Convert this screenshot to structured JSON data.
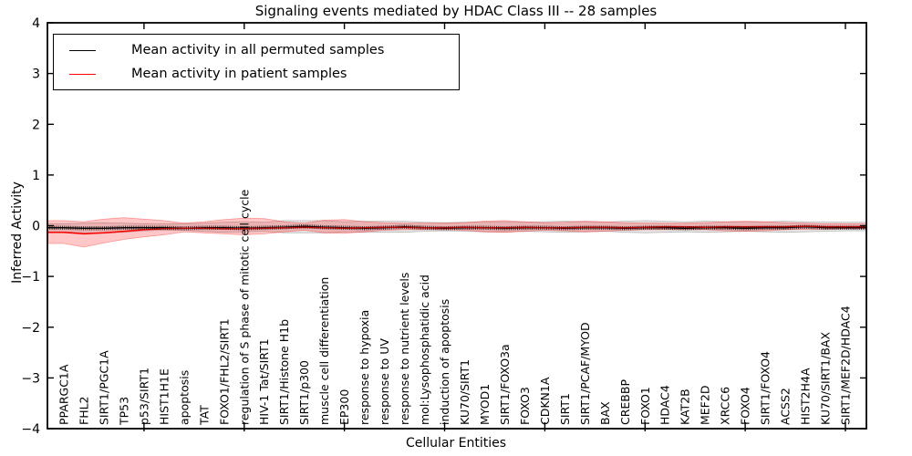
{
  "title": "Signaling events mediated by HDAC Class III -- 28 samples",
  "axes": {
    "xlabel": "Cellular Entities",
    "ylabel": "Inferred Activity"
  },
  "legend": {
    "items": [
      {
        "label": "Mean activity in all permuted samples",
        "color": "#000000"
      },
      {
        "label": "Mean activity in patient samples",
        "color": "#ff0000"
      }
    ]
  },
  "chart_data": {
    "type": "line",
    "title": "Signaling events mediated by HDAC Class III -- 28 samples",
    "xlabel": "Cellular Entities",
    "ylabel": "Inferred Activity",
    "ylim": [
      -4,
      4
    ],
    "yticks": [
      -4,
      -3,
      -2,
      -1,
      0,
      1,
      2,
      3,
      4
    ],
    "grid": false,
    "legend_position": "upper left",
    "categories": [
      "PPARGC1A",
      "FHL2",
      "SIRT1/PGC1A",
      "TP53",
      "p53/SIRT1",
      "HIST1H1E",
      "apoptosis",
      "TAT",
      "FOXO1/FHL2/SIRT1",
      "regulation of S phase of mitotic cell cycle",
      "HIV-1 Tat/SIRT1",
      "SIRT1/Histone H1b",
      "SIRT1/p300",
      "muscle cell differentiation",
      "EP300",
      "response to hypoxia",
      "response to UV",
      "response to nutrient levels",
      "mol:Lysophosphatidic acid",
      "induction of apoptosis",
      "KU70/SIRT1",
      "MYOD1",
      "SIRT1/FOXO3a",
      "FOXO3",
      "CDKN1A",
      "SIRT1",
      "SIRT1/PCAF/MYOD",
      "BAX",
      "CREBBP",
      "FOXO1",
      "HDAC4",
      "KAT2B",
      "MEF2D",
      "XRCC6",
      "FOXO4",
      "SIRT1/FOXO4",
      "ACSS2",
      "HIST2H4A",
      "KU70/SIRT1/BAX",
      "SIRT1/MEF2D/HDAC4"
    ],
    "series": [
      {
        "name": "Mean activity in all permuted samples",
        "color": "#000000",
        "marker": "dense-tick-markers",
        "values": [
          -0.04,
          -0.05,
          -0.05,
          -0.04,
          -0.04,
          -0.04,
          -0.05,
          -0.04,
          -0.04,
          -0.05,
          -0.04,
          -0.03,
          -0.01,
          -0.03,
          -0.04,
          -0.05,
          -0.04,
          -0.02,
          -0.04,
          -0.05,
          -0.04,
          -0.04,
          -0.05,
          -0.04,
          -0.04,
          -0.05,
          -0.04,
          -0.04,
          -0.05,
          -0.04,
          -0.04,
          -0.05,
          -0.04,
          -0.04,
          -0.05,
          -0.04,
          -0.04,
          -0.02,
          -0.04,
          -0.04
        ]
      },
      {
        "name": "Mean activity in patient samples",
        "color": "#ff0000",
        "marker": "none",
        "values": [
          -0.13,
          -0.16,
          -0.14,
          -0.11,
          -0.08,
          -0.06,
          -0.05,
          -0.05,
          -0.06,
          -0.06,
          -0.05,
          -0.04,
          -0.03,
          -0.04,
          -0.05,
          -0.04,
          -0.03,
          -0.03,
          -0.04,
          -0.04,
          -0.03,
          -0.04,
          -0.04,
          -0.03,
          -0.04,
          -0.04,
          -0.03,
          -0.03,
          -0.04,
          -0.03,
          -0.02,
          -0.02,
          -0.03,
          -0.02,
          -0.02,
          -0.02,
          -0.02,
          -0.01,
          -0.02,
          -0.02
        ]
      }
    ],
    "bands": [
      {
        "name": "permuted samples activity spread",
        "color": "#000000",
        "alpha": 0.1,
        "low": [
          -0.12,
          -0.14,
          -0.15,
          -0.13,
          -0.1,
          -0.09,
          -0.09,
          -0.11,
          -0.13,
          -0.12,
          -0.11,
          -0.14,
          -0.14,
          -0.14,
          -0.12,
          -0.13,
          -0.13,
          -0.13,
          -0.11,
          -0.1,
          -0.11,
          -0.12,
          -0.12,
          -0.11,
          -0.12,
          -0.13,
          -0.12,
          -0.11,
          -0.13,
          -0.14,
          -0.13,
          -0.12,
          -0.13,
          -0.12,
          -0.11,
          -0.12,
          -0.13,
          -0.12,
          -0.11,
          -0.1
        ],
        "high": [
          0.04,
          0.05,
          0.06,
          0.05,
          0.04,
          0.04,
          0.04,
          0.05,
          0.07,
          0.08,
          0.07,
          0.1,
          0.1,
          0.1,
          0.08,
          0.09,
          0.09,
          0.09,
          0.07,
          0.06,
          0.07,
          0.08,
          0.08,
          0.07,
          0.08,
          0.09,
          0.08,
          0.07,
          0.09,
          0.1,
          0.09,
          0.08,
          0.09,
          0.08,
          0.07,
          0.08,
          0.09,
          0.08,
          0.08,
          0.07
        ]
      },
      {
        "name": "patient samples activity spread",
        "color": "#ff0000",
        "alpha": 0.22,
        "low": [
          -0.35,
          -0.42,
          -0.34,
          -0.27,
          -0.22,
          -0.18,
          -0.12,
          -0.14,
          -0.16,
          -0.18,
          -0.16,
          -0.12,
          -0.09,
          -0.14,
          -0.15,
          -0.12,
          -0.09,
          -0.08,
          -0.08,
          -0.08,
          -0.09,
          -0.12,
          -0.13,
          -0.11,
          -0.09,
          -0.1,
          -0.12,
          -0.11,
          -0.09,
          -0.08,
          -0.08,
          -0.08,
          -0.08,
          -0.1,
          -0.11,
          -0.1,
          -0.08,
          -0.07,
          -0.07,
          -0.06
        ],
        "high": [
          0.1,
          0.08,
          0.13,
          0.16,
          0.13,
          0.1,
          0.05,
          0.08,
          0.12,
          0.15,
          0.14,
          0.08,
          0.05,
          0.11,
          0.12,
          0.08,
          0.06,
          0.05,
          0.05,
          0.05,
          0.06,
          0.09,
          0.1,
          0.08,
          0.06,
          0.07,
          0.09,
          0.08,
          0.06,
          0.05,
          0.05,
          0.05,
          0.06,
          0.08,
          0.09,
          0.08,
          0.06,
          0.05,
          0.04,
          0.04
        ]
      }
    ]
  }
}
